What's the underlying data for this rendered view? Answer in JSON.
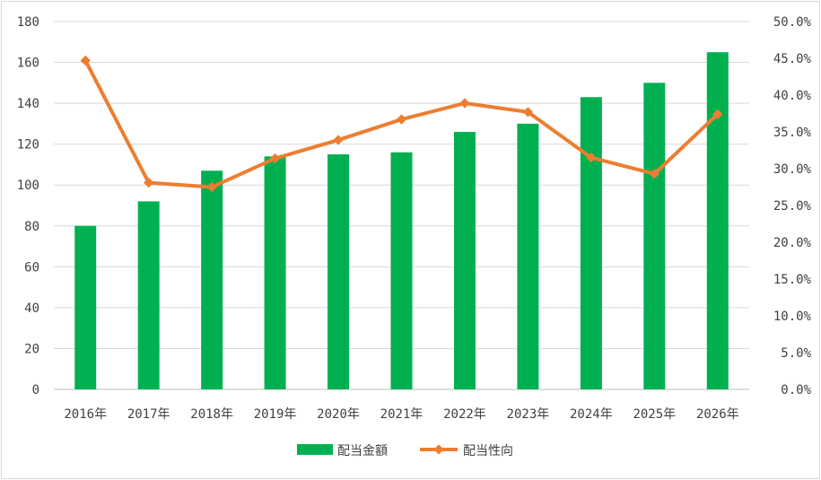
{
  "chart_data": {
    "type": "bar+line",
    "categories": [
      "2016年",
      "2017年",
      "2018年",
      "2019年",
      "2020年",
      "2021年",
      "2022年",
      "2023年",
      "2024年",
      "2025年",
      "2026年"
    ],
    "series": [
      {
        "name": "配当金額",
        "type": "bar",
        "axis": "left",
        "color": "#00b050",
        "values": [
          80,
          92,
          107,
          114,
          115,
          116,
          126,
          130,
          143,
          150,
          165
        ]
      },
      {
        "name": "配当性向",
        "type": "line",
        "axis": "right",
        "color": "#ed7d31",
        "values": [
          44.7,
          28.1,
          27.5,
          31.4,
          33.9,
          36.7,
          38.9,
          37.7,
          31.5,
          29.3,
          37.4
        ]
      }
    ],
    "y_left": {
      "min": 0,
      "max": 180,
      "step": 20,
      "ticks": [
        "0",
        "20",
        "40",
        "60",
        "80",
        "100",
        "120",
        "140",
        "160",
        "180"
      ]
    },
    "y_right": {
      "min": 0,
      "max": 50,
      "step": 5,
      "ticks": [
        "0.0%",
        "5.0%",
        "10.0%",
        "15.0%",
        "20.0%",
        "25.0%",
        "30.0%",
        "35.0%",
        "40.0%",
        "45.0%",
        "50.0%"
      ]
    },
    "grid": true,
    "legend_position": "bottom"
  }
}
